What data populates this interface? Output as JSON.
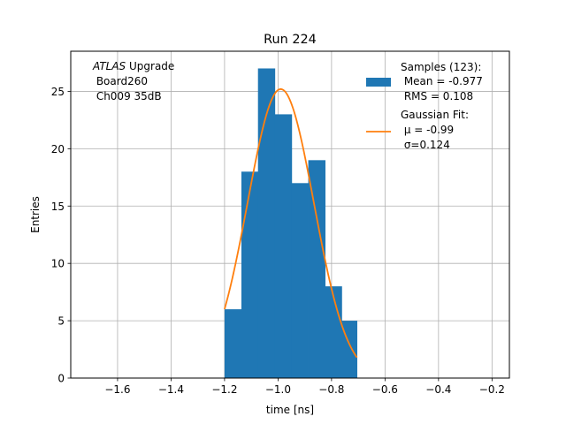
{
  "chart_data": {
    "type": "bar",
    "title": "Run 224",
    "xlabel": "time [ns]",
    "ylabel": "Entries",
    "xlim": [
      -1.775,
      -0.135
    ],
    "ylim": [
      0,
      28.5
    ],
    "grid": true,
    "x_ticks": [
      {
        "value": -1.6,
        "label": "−1.6"
      },
      {
        "value": -1.4,
        "label": "−1.4"
      },
      {
        "value": -1.2,
        "label": "−1.2"
      },
      {
        "value": -1.0,
        "label": "−1.0"
      },
      {
        "value": -0.8,
        "label": "−0.8"
      },
      {
        "value": -0.6,
        "label": "−0.6"
      },
      {
        "value": -0.4,
        "label": "−0.4"
      },
      {
        "value": -0.2,
        "label": "−0.2"
      }
    ],
    "y_ticks": [
      {
        "value": 0,
        "label": "0"
      },
      {
        "value": 5,
        "label": "5"
      },
      {
        "value": 10,
        "label": "10"
      },
      {
        "value": 15,
        "label": "15"
      },
      {
        "value": 20,
        "label": "20"
      },
      {
        "value": 25,
        "label": "25"
      }
    ],
    "histogram": {
      "name": "Samples",
      "color": "#1f77b4",
      "bin_edges": [
        -1.2,
        -1.137,
        -1.075,
        -1.012,
        -0.949,
        -0.887,
        -0.824,
        -0.762,
        -0.705
      ],
      "counts": [
        6,
        18,
        27,
        23,
        17,
        19,
        8,
        5
      ]
    },
    "fit": {
      "name": "Gaussian Fit",
      "color": "#ff7f0e",
      "amplitude": 25.2,
      "mu": -0.99,
      "sigma": 0.124,
      "x_range": [
        -1.2,
        -0.705
      ]
    },
    "annotation": {
      "line1_italic": "ATLAS",
      "line1_rest": " Upgrade",
      "line2": " Board260",
      "line3": " Ch009 35dB"
    },
    "legend": {
      "position": "top-right",
      "samples_lines": [
        "Samples (123):",
        " Mean = -0.977",
        " RMS = 0.108"
      ],
      "fit_lines": [
        "Gaussian Fit:",
        " μ = -0.99",
        " σ=0.124"
      ]
    }
  }
}
